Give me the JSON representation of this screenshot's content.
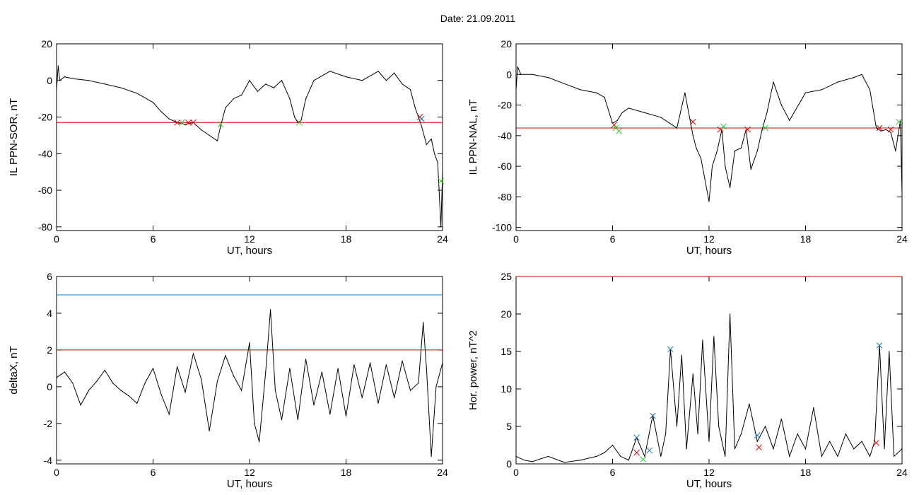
{
  "title": "Date:  21.09.2011",
  "colors": {
    "signal": "#000000",
    "threshold_red": "#dd0000",
    "threshold_blue": "#1f77b4",
    "segment": "#1f5fbf",
    "marker_red": "#dd0000",
    "marker_green": "#33cc33",
    "marker_blue": "#1f77b4"
  },
  "chart_data": [
    {
      "type": "line",
      "xlabel": "UT, hours",
      "ylabel": "IL PPN-SOR, nT",
      "xlim": [
        0,
        24
      ],
      "ylim": [
        -82,
        20
      ],
      "xticks": [
        0,
        6,
        12,
        18,
        24
      ],
      "yticks": [
        -80,
        -60,
        -40,
        -20,
        0,
        20
      ],
      "grid": false,
      "thresholds": [
        {
          "y": -23,
          "color": "red"
        }
      ],
      "series": [
        {
          "values_x": [
            0,
            0.1,
            0.2,
            0.5,
            1,
            2,
            3,
            4,
            5,
            6,
            6.5,
            7,
            7.5,
            8,
            8.5,
            9,
            9.5,
            10,
            10.2,
            10.5,
            11,
            11.5,
            12,
            12.5,
            13,
            13.5,
            14,
            14.5,
            14.8,
            15,
            15.2,
            15.5,
            16,
            17,
            18,
            19,
            20,
            20.5,
            21,
            21.5,
            22,
            22.3,
            22.5,
            22.7,
            23,
            23.3,
            23.5,
            23.7,
            23.9,
            24
          ],
          "values_y": [
            -5,
            8,
            0,
            2,
            1,
            0,
            -2,
            -4,
            -7,
            -12,
            -17,
            -21,
            -23,
            -24,
            -23,
            -27,
            -30,
            -33,
            -25,
            -15,
            -10,
            -8,
            0,
            -6,
            -2,
            -4,
            0,
            -10,
            -20,
            -23,
            -22,
            -10,
            0,
            5,
            2,
            0,
            5,
            0,
            4,
            -2,
            -5,
            -15,
            -20,
            -25,
            -35,
            -32,
            -40,
            -45,
            -80,
            -50
          ]
        }
      ],
      "markers": [
        {
          "x": 7.5,
          "y": -23,
          "color": "red"
        },
        {
          "x": 7.8,
          "y": -23,
          "color": "green"
        },
        {
          "x": 8.2,
          "y": -23,
          "color": "red"
        },
        {
          "x": 8.5,
          "y": -23,
          "color": "red"
        },
        {
          "x": 10.2,
          "y": -24,
          "color": "green"
        },
        {
          "x": 15.1,
          "y": -23,
          "color": "green"
        },
        {
          "x": 22.6,
          "y": -20,
          "color": "red"
        },
        {
          "x": 22.7,
          "y": -21,
          "color": "blue"
        },
        {
          "x": 23.9,
          "y": -55,
          "color": "green"
        }
      ]
    },
    {
      "type": "line",
      "xlabel": "UT, hours",
      "ylabel": "IL PPN-NAL, nT",
      "xlim": [
        0,
        24
      ],
      "ylim": [
        -102,
        20
      ],
      "xticks": [
        0,
        6,
        12,
        18,
        24
      ],
      "yticks": [
        -100,
        -80,
        -60,
        -40,
        -20,
        0,
        20
      ],
      "grid": false,
      "thresholds": [
        {
          "y": -35,
          "color": "red"
        }
      ],
      "series": [
        {
          "values_x": [
            0,
            0.1,
            0.3,
            1,
            2,
            3,
            4,
            5,
            5.5,
            6,
            6.3,
            6.6,
            7,
            8,
            9,
            10,
            10.5,
            11,
            11.2,
            11.5,
            12,
            12.2,
            12.5,
            12.8,
            13,
            13.3,
            13.6,
            14,
            14.3,
            14.6,
            15,
            15.3,
            15.6,
            16,
            16.5,
            17,
            18,
            19,
            20,
            21,
            21.5,
            22,
            22.4,
            22.7,
            23,
            23.3,
            23.6,
            23.9,
            24
          ],
          "values_y": [
            -10,
            5,
            0,
            0,
            -2,
            -6,
            -10,
            -12,
            -15,
            -32,
            -30,
            -25,
            -22,
            -25,
            -28,
            -35,
            -12,
            -40,
            -48,
            -55,
            -83,
            -60,
            -50,
            -36,
            -60,
            -74,
            -50,
            -48,
            -36,
            -62,
            -50,
            -36,
            -25,
            -5,
            -20,
            -30,
            -12,
            -10,
            -5,
            -2,
            0,
            -10,
            -35,
            -37,
            -36,
            -38,
            -50,
            -30,
            -78
          ]
        }
      ],
      "markers": [
        {
          "x": 6.1,
          "y": -33,
          "color": "red"
        },
        {
          "x": 6.2,
          "y": -35,
          "color": "green"
        },
        {
          "x": 6.4,
          "y": -37,
          "color": "green"
        },
        {
          "x": 11,
          "y": -31,
          "color": "red"
        },
        {
          "x": 12.7,
          "y": -36,
          "color": "red"
        },
        {
          "x": 12.9,
          "y": -34,
          "color": "green"
        },
        {
          "x": 14.4,
          "y": -36,
          "color": "red"
        },
        {
          "x": 15.5,
          "y": -35,
          "color": "green"
        },
        {
          "x": 22.6,
          "y": -35,
          "color": "red"
        },
        {
          "x": 23.3,
          "y": -36,
          "color": "red"
        },
        {
          "x": 23.8,
          "y": -31,
          "color": "green"
        }
      ]
    },
    {
      "type": "line",
      "xlabel": "UT, hours",
      "ylabel": "deltaX, nT",
      "xlim": [
        0,
        24
      ],
      "ylim": [
        -4.2,
        6
      ],
      "xticks": [
        0,
        6,
        12,
        18,
        24
      ],
      "yticks": [
        -4,
        -2,
        0,
        2,
        4,
        6
      ],
      "grid": false,
      "thresholds": [
        {
          "y": 5,
          "color": "blue"
        },
        {
          "y": 2,
          "color": "red"
        }
      ],
      "series": [
        {
          "values_x": [
            0,
            0.5,
            1,
            1.5,
            2,
            2.5,
            3,
            3.5,
            4,
            4.5,
            5,
            5.5,
            6,
            6.5,
            7,
            7.5,
            8,
            8.5,
            9,
            9.5,
            10,
            10.5,
            11,
            11.5,
            12,
            12.3,
            12.6,
            13,
            13.3,
            13.6,
            14,
            14.5,
            15,
            15.5,
            16,
            16.5,
            17,
            17.5,
            18,
            18.5,
            19,
            19.5,
            20,
            20.5,
            21,
            21.5,
            22,
            22.5,
            22.8,
            23,
            23.3,
            23.6,
            24
          ],
          "values_y": [
            0.5,
            0.8,
            0.2,
            -1,
            -0.2,
            0.3,
            0.9,
            0.2,
            -0.2,
            -0.5,
            -0.9,
            0.2,
            1,
            -0.4,
            -1.5,
            1.1,
            -0.3,
            1.8,
            0.4,
            -2.4,
            0.3,
            1.7,
            0.6,
            -0.2,
            2.4,
            -2,
            -3,
            0.8,
            4.2,
            -0.2,
            -1.8,
            1,
            -1.8,
            1.5,
            -1,
            0.8,
            -1.5,
            1,
            -1.6,
            1.2,
            -0.6,
            1.3,
            -0.9,
            1.2,
            -0.6,
            1.4,
            -0.2,
            0.2,
            3.5,
            1,
            -3.8,
            0,
            1.3
          ]
        }
      ],
      "markers": []
    },
    {
      "type": "line",
      "xlabel": "UT, hours",
      "ylabel": "Hor. power, nT^2",
      "xlim": [
        0,
        24
      ],
      "ylim": [
        0,
        25
      ],
      "xticks": [
        0,
        6,
        12,
        18,
        24
      ],
      "yticks": [
        0,
        5,
        10,
        15,
        20,
        25
      ],
      "grid": false,
      "thresholds": [
        {
          "y": 25,
          "color": "red"
        }
      ],
      "series": [
        {
          "values_x": [
            0,
            0.5,
            1,
            2,
            3,
            4,
            5,
            5.5,
            6,
            6.5,
            7,
            7.5,
            8,
            8.5,
            9,
            9.3,
            9.6,
            10,
            10.3,
            10.6,
            11,
            11.3,
            11.6,
            12,
            12.3,
            12.6,
            13,
            13.3,
            13.6,
            14,
            14.5,
            15,
            15.5,
            16,
            16.5,
            17,
            17.5,
            18,
            18.5,
            19,
            19.5,
            20,
            20.5,
            21,
            21.5,
            22,
            22.3,
            22.6,
            22.9,
            23.2,
            23.5,
            24
          ],
          "values_y": [
            1,
            0.5,
            0.3,
            1,
            0.2,
            0.5,
            1,
            1.5,
            2.5,
            1,
            0.5,
            3.5,
            1,
            6.5,
            1,
            4,
            15.3,
            5,
            14.5,
            2,
            12,
            4,
            16.5,
            3,
            17,
            5,
            1,
            20,
            2,
            4,
            8,
            3,
            5,
            2,
            6,
            1,
            4,
            2,
            7.5,
            1,
            3,
            1,
            4,
            2,
            3,
            1,
            3,
            15.8,
            2,
            15,
            1,
            2
          ]
        }
      ],
      "markers": [
        {
          "x": 7.5,
          "y": 3.5,
          "color": "blue"
        },
        {
          "x": 7.5,
          "y": 1.5,
          "color": "red"
        },
        {
          "x": 7.9,
          "y": 0.6,
          "color": "green"
        },
        {
          "x": 8.3,
          "y": 1.8,
          "color": "blue"
        },
        {
          "x": 8.5,
          "y": 6.4,
          "color": "blue"
        },
        {
          "x": 9.6,
          "y": 15.3,
          "color": "blue"
        },
        {
          "x": 15,
          "y": 3.8,
          "color": "blue"
        },
        {
          "x": 15.1,
          "y": 2.2,
          "color": "red"
        },
        {
          "x": 22.4,
          "y": 2.8,
          "color": "red"
        },
        {
          "x": 22.6,
          "y": 15.8,
          "color": "blue"
        }
      ]
    }
  ]
}
